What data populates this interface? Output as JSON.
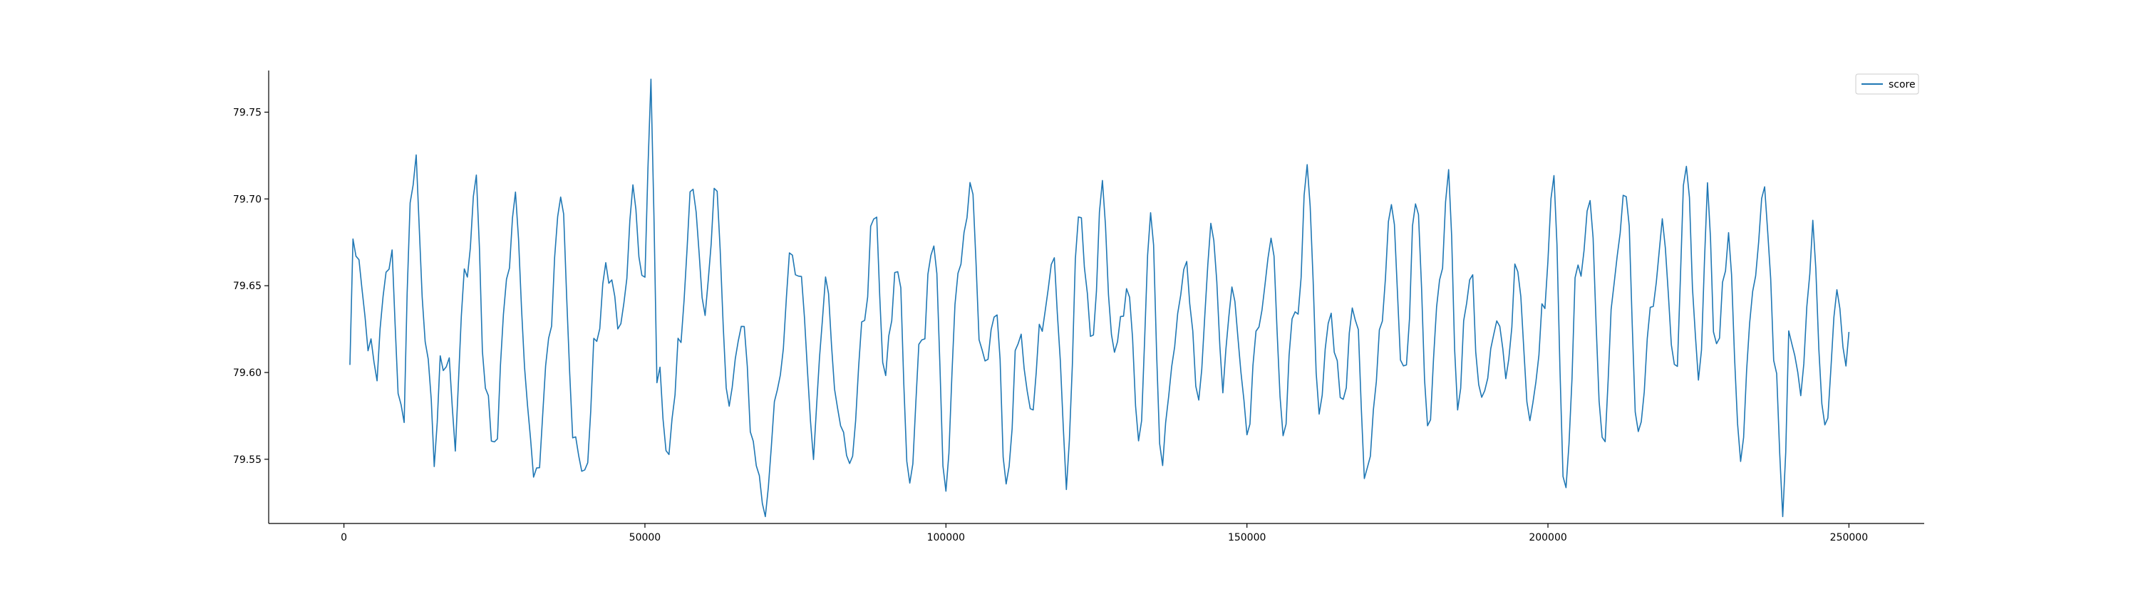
{
  "chart_data": {
    "type": "line",
    "title": "",
    "xlabel": "",
    "ylabel": "",
    "xlim": [
      -12500,
      262500
    ],
    "ylim": [
      79.513,
      79.774
    ],
    "x_ticks": [
      0,
      50000,
      100000,
      150000,
      200000,
      250000
    ],
    "x_tick_labels": [
      "0",
      "50000",
      "100000",
      "150000",
      "200000",
      "250000"
    ],
    "y_ticks": [
      79.55,
      79.6,
      79.65,
      79.7,
      79.75
    ],
    "y_tick_labels": [
      "79.55",
      "79.60",
      "79.65",
      "79.70",
      "79.75"
    ],
    "grid": false,
    "legend": {
      "placement": "upper-right",
      "entries": [
        "score"
      ]
    },
    "series": [
      {
        "name": "score",
        "color": "#1f77b4",
        "x_start": 1000,
        "x_end": 250000,
        "sample_step": 500,
        "keypoints": [
          [
            1000,
            79.6
          ],
          [
            1500,
            79.68
          ],
          [
            2500,
            79.65
          ],
          [
            3500,
            79.62
          ],
          [
            4500,
            79.61
          ],
          [
            5500,
            79.58
          ],
          [
            6500,
            79.64
          ],
          [
            8000,
            79.67
          ],
          [
            9000,
            79.6
          ],
          [
            10000,
            79.56
          ],
          [
            11000,
            79.7
          ],
          [
            12000,
            79.72
          ],
          [
            13000,
            79.65
          ],
          [
            14000,
            79.6
          ],
          [
            15000,
            79.54
          ],
          [
            16000,
            79.6
          ],
          [
            17500,
            79.62
          ],
          [
            18500,
            79.56
          ],
          [
            20000,
            79.65
          ],
          [
            22000,
            79.7
          ],
          [
            23500,
            79.58
          ],
          [
            25000,
            79.56
          ],
          [
            27000,
            79.65
          ],
          [
            28500,
            79.71
          ],
          [
            30000,
            79.6
          ],
          [
            32000,
            79.55
          ],
          [
            34000,
            79.63
          ],
          [
            36000,
            79.7
          ],
          [
            38000,
            79.57
          ],
          [
            40000,
            79.54
          ],
          [
            42000,
            79.62
          ],
          [
            44000,
            79.66
          ],
          [
            46000,
            79.62
          ],
          [
            48000,
            79.69
          ],
          [
            50000,
            79.65
          ],
          [
            51000,
            79.76
          ],
          [
            52000,
            79.6
          ],
          [
            54000,
            79.56
          ],
          [
            56000,
            79.62
          ],
          [
            58000,
            79.72
          ],
          [
            60000,
            79.62
          ],
          [
            62000,
            79.7
          ],
          [
            64000,
            79.58
          ],
          [
            66000,
            79.62
          ],
          [
            68000,
            79.56
          ],
          [
            70000,
            79.52
          ],
          [
            72000,
            79.6
          ],
          [
            74000,
            79.66
          ],
          [
            76000,
            79.64
          ],
          [
            78000,
            79.56
          ],
          [
            80000,
            79.66
          ],
          [
            82000,
            79.6
          ],
          [
            84000,
            79.54
          ],
          [
            86000,
            79.62
          ],
          [
            88000,
            79.69
          ],
          [
            90000,
            79.6
          ],
          [
            92000,
            79.66
          ],
          [
            94000,
            79.53
          ],
          [
            96000,
            79.62
          ],
          [
            98000,
            79.69
          ],
          [
            100000,
            79.53
          ],
          [
            102000,
            79.66
          ],
          [
            104000,
            79.7
          ],
          [
            106000,
            79.6
          ],
          [
            108000,
            79.64
          ],
          [
            110000,
            79.54
          ],
          [
            112000,
            79.62
          ],
          [
            114000,
            79.56
          ],
          [
            116000,
            79.62
          ],
          [
            118000,
            79.66
          ],
          [
            120000,
            79.54
          ],
          [
            122000,
            79.68
          ],
          [
            124000,
            79.62
          ],
          [
            126000,
            79.7
          ],
          [
            128000,
            79.6
          ],
          [
            130000,
            79.64
          ],
          [
            132000,
            79.57
          ],
          [
            134000,
            79.7
          ],
          [
            136000,
            79.55
          ],
          [
            138000,
            79.63
          ],
          [
            140000,
            79.66
          ],
          [
            142000,
            79.58
          ],
          [
            144000,
            79.69
          ],
          [
            146000,
            79.6
          ],
          [
            148000,
            79.64
          ],
          [
            150000,
            79.56
          ],
          [
            152000,
            79.62
          ],
          [
            154000,
            79.67
          ],
          [
            156000,
            79.58
          ],
          [
            158000,
            79.64
          ],
          [
            160000,
            79.71
          ],
          [
            162000,
            79.56
          ],
          [
            164000,
            79.62
          ],
          [
            166000,
            79.58
          ],
          [
            168000,
            79.64
          ],
          [
            170000,
            79.54
          ],
          [
            172000,
            79.62
          ],
          [
            174000,
            79.68
          ],
          [
            176000,
            79.6
          ],
          [
            178000,
            79.7
          ],
          [
            180000,
            79.58
          ],
          [
            182000,
            79.65
          ],
          [
            183500,
            79.73
          ],
          [
            185000,
            79.6
          ],
          [
            187000,
            79.66
          ],
          [
            189000,
            79.58
          ],
          [
            191000,
            79.64
          ],
          [
            193000,
            79.6
          ],
          [
            195000,
            79.67
          ],
          [
            197000,
            79.58
          ],
          [
            199000,
            79.64
          ],
          [
            201000,
            79.7
          ],
          [
            203000,
            79.53
          ],
          [
            205000,
            79.66
          ],
          [
            207000,
            79.7
          ],
          [
            209000,
            79.56
          ],
          [
            211000,
            79.64
          ],
          [
            213000,
            79.71
          ],
          [
            215000,
            79.56
          ],
          [
            217000,
            79.62
          ],
          [
            219000,
            79.68
          ],
          [
            221000,
            79.58
          ],
          [
            223000,
            79.72
          ],
          [
            225000,
            79.6
          ],
          [
            226500,
            79.71
          ],
          [
            228000,
            79.62
          ],
          [
            230000,
            79.67
          ],
          [
            232000,
            79.56
          ],
          [
            234000,
            79.64
          ],
          [
            236000,
            79.69
          ],
          [
            238000,
            79.6
          ],
          [
            239000,
            79.52
          ],
          [
            240000,
            79.62
          ],
          [
            242000,
            79.58
          ],
          [
            244000,
            79.68
          ],
          [
            246000,
            79.58
          ],
          [
            248000,
            79.65
          ],
          [
            249000,
            79.61
          ],
          [
            250000,
            79.62
          ]
        ]
      }
    ]
  }
}
